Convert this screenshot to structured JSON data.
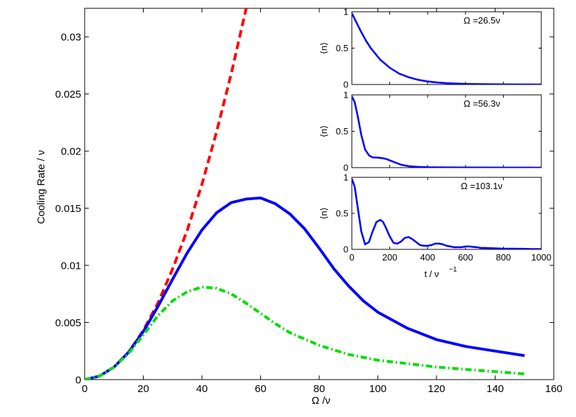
{
  "chart_data": [
    {
      "type": "line",
      "xlabel": "Ω  /ν",
      "ylabel": "Cooling Rate / ν",
      "xlim": [
        0,
        160
      ],
      "ylim": [
        0,
        0.0325
      ],
      "xticks": [
        0,
        20,
        40,
        60,
        80,
        100,
        120,
        140,
        160
      ],
      "xtick_labels": [
        "0",
        "20",
        "40",
        "60",
        "80",
        "100",
        "120",
        "140",
        "160"
      ],
      "yticks": [
        0,
        0.005,
        0.01,
        0.015,
        0.02,
        0.025,
        0.03
      ],
      "ytick_labels": [
        "0",
        "0.005",
        "0.01",
        "0.015",
        "0.02",
        "0.025",
        "0.03"
      ],
      "grid": false,
      "series": [
        {
          "style": "dashed",
          "color": "#ff0000",
          "x": [
            0,
            5,
            10,
            15,
            20,
            25,
            30,
            35,
            40,
            45,
            50,
            55,
            57.5
          ],
          "values": [
            0,
            0.0003,
            0.0011,
            0.0024,
            0.0043,
            0.0067,
            0.0097,
            0.0131,
            0.0171,
            0.0217,
            0.0268,
            0.0324,
            0.0354
          ]
        },
        {
          "style": "solid",
          "color": "#0000ff",
          "x": [
            0,
            5,
            10,
            15,
            20,
            25,
            30,
            35,
            40,
            45,
            50,
            55,
            60,
            65,
            70,
            75,
            80,
            85,
            90,
            95,
            100,
            110,
            120,
            130,
            140,
            150
          ],
          "values": [
            0,
            0.0003,
            0.0011,
            0.0024,
            0.0042,
            0.0064,
            0.0088,
            0.0111,
            0.0131,
            0.0146,
            0.0155,
            0.0158,
            0.0159,
            0.0154,
            0.0145,
            0.0132,
            0.0115,
            0.0097,
            0.0082,
            0.0069,
            0.0059,
            0.0045,
            0.0035,
            0.0029,
            0.0025,
            0.0021
          ]
        },
        {
          "style": "dash-dot",
          "color": "#00dd00",
          "x": [
            0,
            5,
            10,
            15,
            20,
            25,
            30,
            35,
            40,
            45,
            50,
            55,
            60,
            65,
            70,
            80,
            90,
            100,
            110,
            120,
            130,
            140,
            150
          ],
          "values": [
            0,
            0.0003,
            0.0011,
            0.0023,
            0.0039,
            0.0056,
            0.0069,
            0.0077,
            0.0081,
            0.008,
            0.0075,
            0.0067,
            0.0058,
            0.0049,
            0.0041,
            0.003,
            0.0022,
            0.0017,
            0.0014,
            0.0011,
            0.0009,
            0.0007,
            0.0005
          ]
        }
      ]
    },
    {
      "type": "line",
      "annotation": "Ω  =26.5ν",
      "ylabel": "⟨n⟩",
      "xlim": [
        0,
        1000
      ],
      "ylim": [
        0,
        1
      ],
      "yticks": [
        0,
        0.5,
        1
      ],
      "ytick_labels": [
        "0",
        "0.5",
        "1"
      ],
      "series": [
        {
          "color": "#0000ff",
          "x": [
            0,
            25,
            50,
            75,
            100,
            150,
            200,
            250,
            300,
            350,
            400,
            450,
            500,
            600,
            700,
            800,
            900,
            1000
          ],
          "values": [
            0.98,
            0.85,
            0.72,
            0.6,
            0.5,
            0.34,
            0.23,
            0.15,
            0.1,
            0.065,
            0.042,
            0.028,
            0.018,
            0.008,
            0.004,
            0.002,
            0.001,
            0
          ]
        }
      ]
    },
    {
      "type": "line",
      "annotation": "Ω  =56.3ν",
      "ylabel": "⟨n⟩",
      "xlim": [
        0,
        1000
      ],
      "ylim": [
        0,
        1
      ],
      "yticks": [
        0,
        0.5,
        1
      ],
      "ytick_labels": [
        "0",
        "0.5",
        "1"
      ],
      "series": [
        {
          "color": "#0000ff",
          "x": [
            0,
            15,
            30,
            50,
            70,
            90,
            110,
            130,
            160,
            180,
            200,
            230,
            260,
            300,
            350,
            400,
            500,
            600,
            800,
            1000
          ],
          "values": [
            0.98,
            0.9,
            0.72,
            0.45,
            0.25,
            0.17,
            0.14,
            0.14,
            0.13,
            0.12,
            0.1,
            0.07,
            0.04,
            0.02,
            0.01,
            0.006,
            0.003,
            0.002,
            0.001,
            0
          ]
        }
      ]
    },
    {
      "type": "line",
      "annotation": "Ω  =103.1ν",
      "ylabel": "⟨n⟩",
      "xlabel": "t / ν",
      "xlabel_sup": "−1",
      "xlim": [
        0,
        1000
      ],
      "ylim": [
        0,
        1
      ],
      "xticks": [
        0,
        200,
        400,
        600,
        800,
        1000
      ],
      "xtick_labels": [
        "0",
        "200",
        "400",
        "600",
        "800",
        "1000"
      ],
      "yticks": [
        0,
        0.5,
        1
      ],
      "ytick_labels": [
        "0",
        "0.5",
        "1"
      ],
      "series": [
        {
          "color": "#0000ff",
          "x": [
            0,
            15,
            30,
            50,
            70,
            90,
            110,
            130,
            150,
            165,
            180,
            200,
            220,
            240,
            260,
            280,
            300,
            320,
            340,
            360,
            380,
            400,
            420,
            440,
            460,
            480,
            500,
            520,
            540,
            560,
            580,
            600,
            620,
            640,
            660,
            680,
            700,
            750,
            800,
            850,
            900,
            950,
            1000
          ],
          "values": [
            0.98,
            0.87,
            0.6,
            0.25,
            0.07,
            0.1,
            0.25,
            0.38,
            0.41,
            0.38,
            0.3,
            0.18,
            0.09,
            0.08,
            0.11,
            0.16,
            0.17,
            0.14,
            0.1,
            0.06,
            0.05,
            0.05,
            0.06,
            0.08,
            0.08,
            0.07,
            0.05,
            0.04,
            0.03,
            0.03,
            0.03,
            0.04,
            0.04,
            0.035,
            0.03,
            0.02,
            0.02,
            0.015,
            0.01,
            0.01,
            0.008,
            0.005,
            0.005
          ]
        }
      ]
    }
  ]
}
